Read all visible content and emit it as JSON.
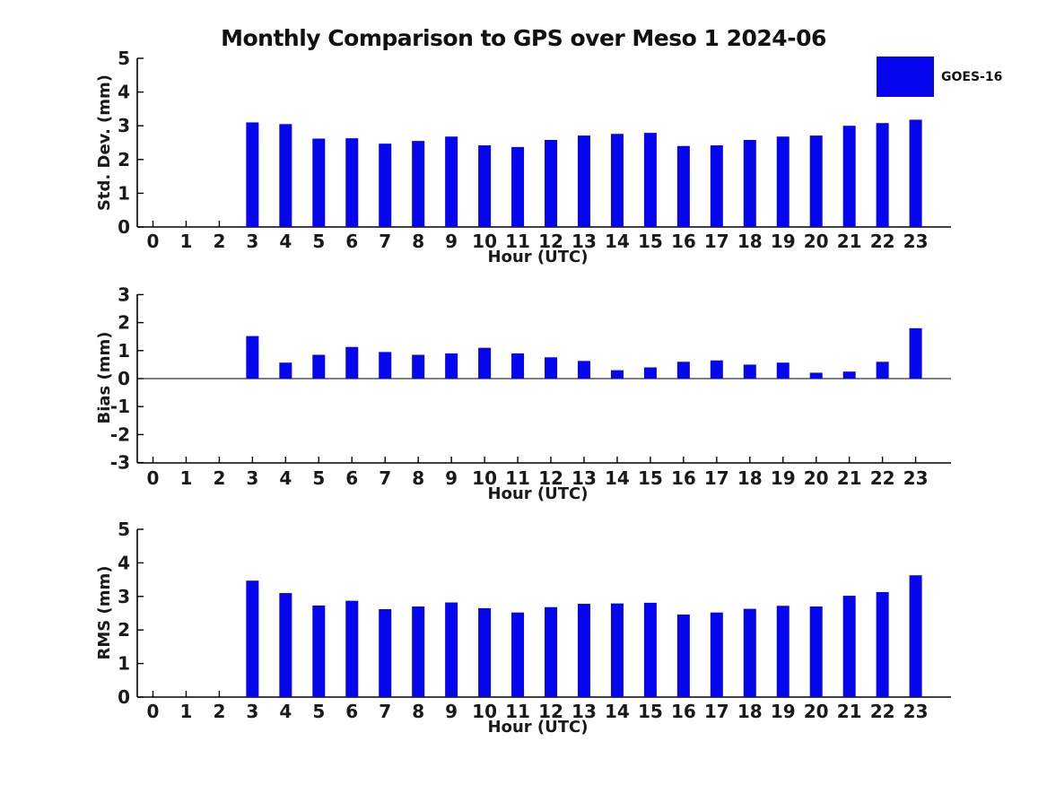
{
  "title": "Monthly Comparison to GPS over Meso 1 2024-06",
  "legend": {
    "label": "GOES-16",
    "color": "#0606ee",
    "position": "top-right"
  },
  "chart_data": [
    {
      "type": "bar",
      "name": "std-dev",
      "series_name": "GOES-16",
      "xlabel": "Hour (UTC)",
      "ylabel": "Std. Dev. (mm)",
      "categories": [
        0,
        1,
        2,
        3,
        4,
        5,
        6,
        7,
        8,
        9,
        10,
        11,
        12,
        13,
        14,
        15,
        16,
        17,
        18,
        19,
        20,
        21,
        22,
        23
      ],
      "values": [
        0,
        0,
        0,
        3.1,
        3.05,
        2.62,
        2.63,
        2.47,
        2.55,
        2.68,
        2.42,
        2.37,
        2.58,
        2.71,
        2.76,
        2.79,
        2.4,
        2.42,
        2.58,
        2.68,
        2.71,
        3.0,
        3.08,
        3.18
      ],
      "ylim": [
        0,
        5
      ],
      "yticks": [
        0,
        1,
        2,
        3,
        4,
        5
      ],
      "bar_color": "#0606ee",
      "grid": false
    },
    {
      "type": "bar",
      "name": "bias",
      "series_name": "GOES-16",
      "xlabel": "Hour (UTC)",
      "ylabel": "Bias (mm)",
      "categories": [
        0,
        1,
        2,
        3,
        4,
        5,
        6,
        7,
        8,
        9,
        10,
        11,
        12,
        13,
        14,
        15,
        16,
        17,
        18,
        19,
        20,
        21,
        22,
        23
      ],
      "values": [
        0,
        0,
        0,
        1.52,
        0.57,
        0.85,
        1.13,
        0.95,
        0.85,
        0.9,
        1.1,
        0.9,
        0.76,
        0.63,
        0.3,
        0.4,
        0.6,
        0.65,
        0.5,
        0.57,
        0.21,
        0.25,
        0.6,
        1.8
      ],
      "ylim": [
        -3,
        3
      ],
      "yticks": [
        -3,
        -2,
        -1,
        0,
        1,
        2,
        3
      ],
      "zero_line": true,
      "bar_color": "#0606ee",
      "grid": false
    },
    {
      "type": "bar",
      "name": "rms",
      "series_name": "GOES-16",
      "xlabel": "Hour (UTC)",
      "ylabel": "RMS (mm)",
      "categories": [
        0,
        1,
        2,
        3,
        4,
        5,
        6,
        7,
        8,
        9,
        10,
        11,
        12,
        13,
        14,
        15,
        16,
        17,
        18,
        19,
        20,
        21,
        22,
        23
      ],
      "values": [
        0,
        0,
        0,
        3.47,
        3.1,
        2.73,
        2.87,
        2.62,
        2.7,
        2.82,
        2.65,
        2.52,
        2.68,
        2.78,
        2.79,
        2.81,
        2.46,
        2.52,
        2.63,
        2.72,
        2.7,
        3.02,
        3.13,
        3.63
      ],
      "ylim": [
        0,
        5
      ],
      "yticks": [
        0,
        1,
        2,
        3,
        4,
        5
      ],
      "bar_color": "#0606ee",
      "grid": false
    }
  ]
}
